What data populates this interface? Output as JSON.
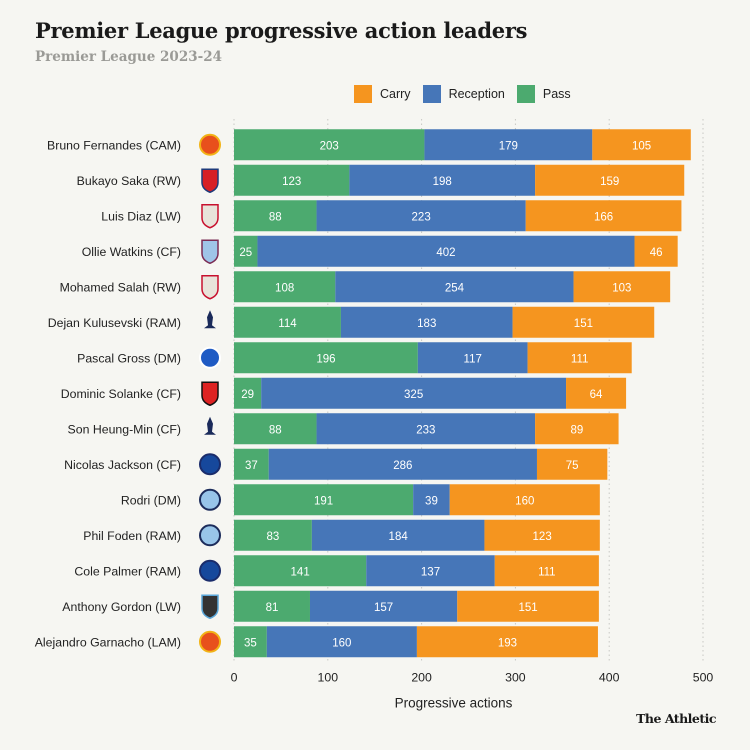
{
  "header": {
    "title": "Premier League progressive action leaders",
    "subtitle": "Premier League 2023-24"
  },
  "footer": {
    "brand": "The Athletic"
  },
  "colors": {
    "carry": "#f5951f",
    "reception": "#4676b8",
    "pass": "#4caa6f",
    "grid": "#c8c8c4"
  },
  "legend": [
    {
      "label": "Carry",
      "key": "carry"
    },
    {
      "label": "Reception",
      "key": "reception"
    },
    {
      "label": "Pass",
      "key": "pass"
    }
  ],
  "chart_data": {
    "type": "bar",
    "orientation": "horizontal",
    "stacked": true,
    "title": "Premier League progressive action leaders",
    "subtitle": "Premier League 2023-24",
    "xlabel": "Progressive actions",
    "ylabel": "",
    "xlim": [
      0,
      500
    ],
    "xticks": [
      0,
      100,
      200,
      300,
      400,
      500
    ],
    "grid": true,
    "legend_position": "top-right",
    "categories": [
      "Bruno Fernandes (CAM)",
      "Bukayo Saka (RW)",
      "Luis Diaz (LW)",
      "Ollie Watkins (CF)",
      "Mohamed Salah (RW)",
      "Dejan Kulusevski (RAM)",
      "Pascal Gross (DM)",
      "Dominic Solanke (CF)",
      "Son Heung-Min (CF)",
      "Nicolas Jackson (CF)",
      "Rodri (DM)",
      "Phil Foden (RAM)",
      "Cole Palmer (RAM)",
      "Anthony Gordon (LW)",
      "Alejandro Garnacho (LAM)"
    ],
    "clubs": [
      "Manchester United",
      "Arsenal",
      "Liverpool",
      "Aston Villa",
      "Liverpool",
      "Tottenham",
      "Brighton",
      "Bournemouth",
      "Tottenham",
      "Chelsea",
      "Manchester City",
      "Manchester City",
      "Chelsea",
      "Newcastle",
      "Manchester United"
    ],
    "series": [
      {
        "name": "Pass",
        "key": "pass",
        "values": [
          203,
          123,
          88,
          25,
          108,
          114,
          196,
          29,
          88,
          37,
          191,
          83,
          141,
          81,
          35
        ]
      },
      {
        "name": "Reception",
        "key": "reception",
        "values": [
          179,
          198,
          223,
          402,
          254,
          183,
          117,
          325,
          233,
          286,
          39,
          184,
          137,
          157,
          160
        ]
      },
      {
        "name": "Carry",
        "key": "carry",
        "values": [
          105,
          159,
          166,
          46,
          103,
          151,
          111,
          64,
          89,
          75,
          160,
          123,
          111,
          151,
          193
        ]
      }
    ]
  }
}
